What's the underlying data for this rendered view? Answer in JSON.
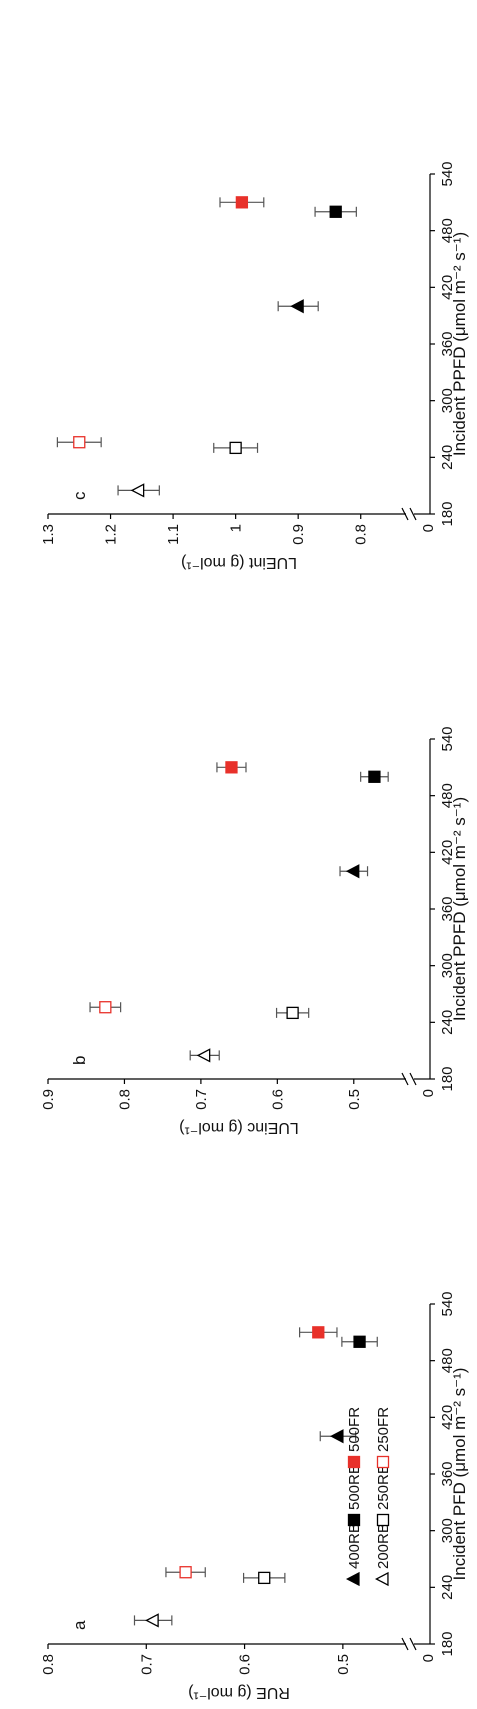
{
  "chart_data": [
    {
      "panel_letter": "a",
      "type": "scatter",
      "xlabel": "Incident PFD (μmol m⁻² s⁻¹)",
      "ylabel": "RUE (g mol⁻¹)",
      "xlim": [
        180,
        540
      ],
      "xticks": [
        "180",
        "240",
        "300",
        "360",
        "420",
        "480",
        "540"
      ],
      "ylim": [
        0.45,
        0.8
      ],
      "yticks": [
        "0.8",
        "0.7",
        "0.6",
        "0.5"
      ],
      "y_break_label": "0",
      "legend": [
        {
          "label": "200RB",
          "marker": "triangle-open",
          "color": "#000000"
        },
        {
          "label": "250RB",
          "marker": "square-open",
          "color": "#000000"
        },
        {
          "label": "250FR",
          "marker": "square-open",
          "color": "#e8312a"
        },
        {
          "label": "400RB",
          "marker": "triangle-filled",
          "color": "#000000"
        },
        {
          "label": "500RB",
          "marker": "square-filled",
          "color": "#000000"
        },
        {
          "label": "500FR",
          "marker": "square-filled",
          "color": "#e8312a"
        }
      ],
      "series": [
        {
          "name": "200RB",
          "x": 205,
          "y": 0.693,
          "err": 0.019
        },
        {
          "name": "250RB",
          "x": 250,
          "y": 0.58,
          "err": 0.021
        },
        {
          "name": "250FR",
          "x": 256,
          "y": 0.66,
          "err": 0.02
        },
        {
          "name": "400RB",
          "x": 400,
          "y": 0.505,
          "err": 0.018
        },
        {
          "name": "500RB",
          "x": 500,
          "y": 0.483,
          "err": 0.018
        },
        {
          "name": "500FR",
          "x": 510,
          "y": 0.525,
          "err": 0.019
        }
      ]
    },
    {
      "panel_letter": "b",
      "type": "scatter",
      "xlabel": "Incident PPFD (μmol m⁻² s⁻¹)",
      "ylabel": "LUEinc (g mol⁻¹)",
      "xlim": [
        180,
        540
      ],
      "xticks": [
        "180",
        "240",
        "300",
        "360",
        "420",
        "480",
        "540"
      ],
      "ylim": [
        0.45,
        0.9
      ],
      "yticks": [
        "0.9",
        "0.8",
        "0.7",
        "0.6",
        "0.5"
      ],
      "y_break_label": "0",
      "series": [
        {
          "name": "200RB",
          "x": 205,
          "y": 0.695,
          "err": 0.019
        },
        {
          "name": "250RB",
          "x": 250,
          "y": 0.58,
          "err": 0.021
        },
        {
          "name": "250FR",
          "x": 256,
          "y": 0.825,
          "err": 0.02
        },
        {
          "name": "400RB",
          "x": 400,
          "y": 0.5,
          "err": 0.018
        },
        {
          "name": "500RB",
          "x": 500,
          "y": 0.473,
          "err": 0.018
        },
        {
          "name": "500FR",
          "x": 510,
          "y": 0.66,
          "err": 0.019
        }
      ]
    },
    {
      "panel_letter": "c",
      "type": "scatter",
      "xlabel": "Incident PPFD (μmol m⁻² s⁻¹)",
      "ylabel": "LUEint (g mol⁻¹)",
      "xlim": [
        180,
        540
      ],
      "xticks": [
        "180",
        "240",
        "300",
        "360",
        "420",
        "480",
        "540"
      ],
      "ylim": [
        0.75,
        1.3
      ],
      "yticks": [
        "1.3",
        "1.2",
        "1.1",
        "1",
        "0.9",
        "0.8"
      ],
      "y_break_label": "0",
      "series": [
        {
          "name": "200RB",
          "x": 205,
          "y": 1.155,
          "err": 0.033
        },
        {
          "name": "250RB",
          "x": 250,
          "y": 1.0,
          "err": 0.035
        },
        {
          "name": "250FR",
          "x": 256,
          "y": 1.25,
          "err": 0.035
        },
        {
          "name": "400RB",
          "x": 400,
          "y": 0.9,
          "err": 0.032
        },
        {
          "name": "500RB",
          "x": 500,
          "y": 0.84,
          "err": 0.033
        },
        {
          "name": "500FR",
          "x": 510,
          "y": 0.99,
          "err": 0.035
        }
      ]
    }
  ]
}
